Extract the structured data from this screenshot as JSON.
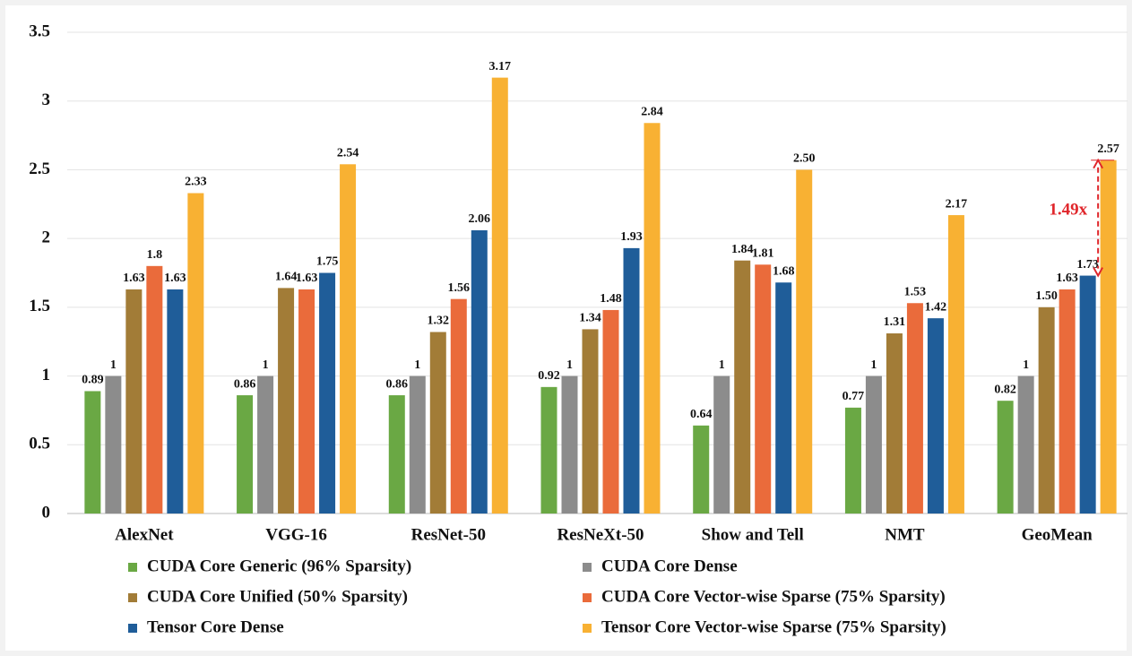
{
  "chart_data": {
    "type": "bar",
    "categories": [
      "AlexNet",
      "VGG-16",
      "ResNet-50",
      "ResNeXt-50",
      "Show and Tell",
      "NMT",
      "GeoMean"
    ],
    "series": [
      {
        "name": "CUDA Core Generic (96% Sparsity)",
        "color": "#6aa844",
        "values": [
          0.89,
          0.86,
          0.86,
          0.92,
          0.64,
          0.77,
          0.82
        ]
      },
      {
        "name": "CUDA Core Dense",
        "color": "#8c8c8c",
        "values": [
          1,
          1,
          1,
          1,
          1,
          1,
          1
        ]
      },
      {
        "name": "CUDA Core Unified (50% Sparsity)",
        "color": "#a27c37",
        "values": [
          1.63,
          1.64,
          1.32,
          1.34,
          1.84,
          1.31,
          1.5
        ],
        "value_labels": [
          "1.63",
          "1.64",
          "1.32",
          "1.34",
          "1.84",
          "1.31",
          "1.50"
        ]
      },
      {
        "name": "CUDA Core Vector-wise Sparse (75% Sparsity)",
        "color": "#ea6b3b",
        "values": [
          1.8,
          1.63,
          1.56,
          1.48,
          1.81,
          1.53,
          1.63
        ]
      },
      {
        "name": "Tensor Core Dense",
        "color": "#1f5d99",
        "values": [
          1.63,
          1.75,
          2.06,
          1.93,
          1.68,
          1.42,
          1.73
        ]
      },
      {
        "name": "Tensor Core Vector-wise Sparse (75% Sparsity)",
        "color": "#f8b133",
        "values": [
          2.33,
          2.54,
          3.17,
          2.84,
          2.5,
          2.17,
          2.57
        ],
        "value_labels": [
          "2.33",
          "2.54",
          "3.17",
          "2.84",
          "2.50",
          "2.17",
          "2.57"
        ]
      }
    ],
    "ylim": [
      0,
      3.5
    ],
    "yticks": [
      0,
      0.5,
      1,
      1.5,
      2,
      2.5,
      3,
      3.5
    ],
    "grid": true,
    "annotations": [
      {
        "text": "1.49x",
        "color": "#e0262b"
      }
    ]
  }
}
